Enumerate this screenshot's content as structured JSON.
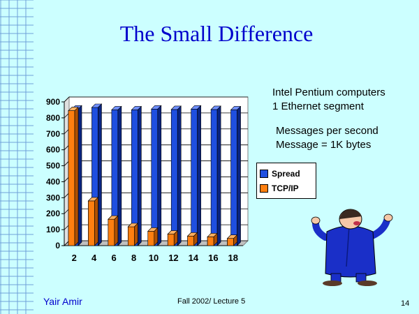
{
  "slide": {
    "title": "The Small Difference",
    "notes": [
      "Intel Pentium computers",
      "1 Ethernet segment"
    ],
    "notes2": [
      "Messages  per second",
      "Message = 1K bytes"
    ],
    "footer_author": "Yair Amir",
    "footer_course": "Fall 2002/ Lecture 5",
    "page_number": "14"
  },
  "colors": {
    "background": "#CCFFFF",
    "title": "#0000CC",
    "spread": "#1F4FE0",
    "tcpip": "#FF7F10"
  },
  "chart_data": {
    "type": "bar",
    "categories": [
      "2",
      "4",
      "6",
      "8",
      "10",
      "12",
      "14",
      "16",
      "18"
    ],
    "series": [
      {
        "name": "Spread",
        "values": [
          855,
          865,
          850,
          850,
          855,
          852,
          855,
          852,
          850
        ]
      },
      {
        "name": "TCP/IP",
        "values": [
          845,
          280,
          165,
          118,
          90,
          72,
          60,
          55,
          45
        ]
      }
    ],
    "ylim": [
      0,
      900
    ],
    "yticks": [
      "0",
      "100",
      "200",
      "300",
      "400",
      "500",
      "600",
      "700",
      "800",
      "900"
    ],
    "grid": true,
    "legend_position": "right"
  }
}
